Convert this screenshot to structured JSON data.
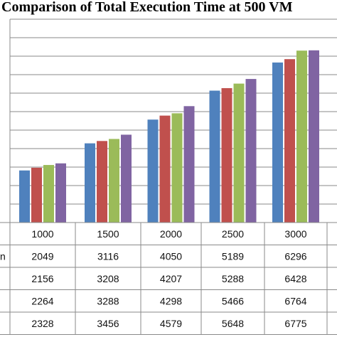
{
  "chart_data": {
    "type": "bar",
    "title": "Comparison of Total Execution Time at 500 VM",
    "categories": [
      "1000",
      "1500",
      "2000",
      "2500",
      "3000"
    ],
    "series": [
      {
        "label_fragment": "n",
        "values": [
          2049,
          3116,
          4050,
          5189,
          6296
        ],
        "color": "#4f81bd"
      },
      {
        "values": [
          2156,
          3208,
          4207,
          5288,
          6428
        ],
        "color": "#c0504d"
      },
      {
        "values": [
          2264,
          3288,
          4298,
          5466,
          6764
        ],
        "color": "#9bbb59"
      },
      {
        "values": [
          2328,
          3456,
          4579,
          5648,
          6775
        ],
        "color": "#8064a2"
      }
    ],
    "ylim": [
      0,
      8000
    ],
    "grid": true,
    "legend": "data table below chart"
  }
}
